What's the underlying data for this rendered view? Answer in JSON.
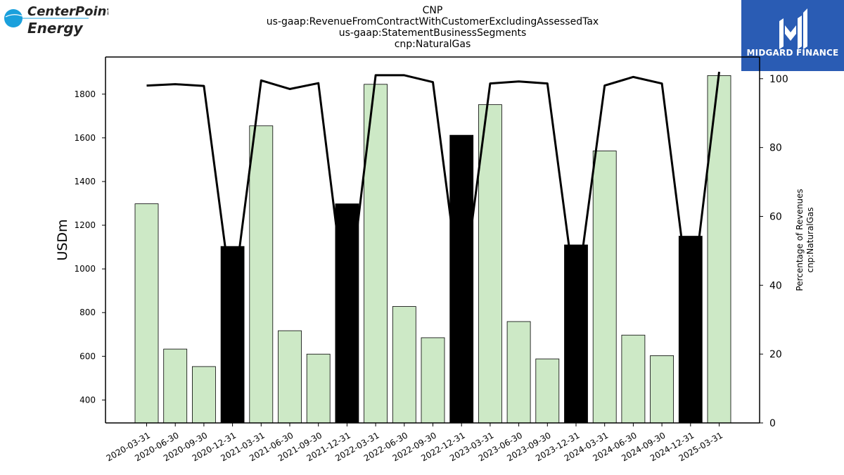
{
  "header": {
    "title_lines": [
      "CNP",
      "us-gaap:RevenueFromContractWithCustomerExcludingAssessedTax",
      "us-gaap:StatementBusinessSegments",
      "cnp:NaturalGas"
    ]
  },
  "logos": {
    "left": {
      "line1": "CenterPoint.",
      "line2": "Energy",
      "icon": "centerpoint-globe-icon",
      "color": "#1aa0dc"
    },
    "right": {
      "text": "MIDGARD FINANCE",
      "icon": "midgard-m-icon",
      "bg": "#2a5cb4"
    }
  },
  "chart_data": {
    "type": "bar",
    "categories": [
      "2020-03-31",
      "2020-06-30",
      "2020-09-30",
      "2020-12-31",
      "2021-03-31",
      "2021-06-30",
      "2021-09-30",
      "2021-12-31",
      "2022-03-31",
      "2022-06-30",
      "2022-09-30",
      "2022-12-31",
      "2023-03-31",
      "2023-06-30",
      "2023-09-30",
      "2023-12-31",
      "2024-03-31",
      "2024-06-30",
      "2024-09-30",
      "2024-12-31",
      "2025-03-31"
    ],
    "values": [
      1298,
      633,
      553,
      1103,
      1655,
      717,
      610,
      1298,
      1845,
      828,
      685,
      1612,
      1752,
      759,
      588,
      1110,
      1540,
      697,
      603,
      1150,
      1885
    ],
    "bar_colors": [
      "#cde9c6",
      "#cde9c6",
      "#cde9c6",
      "#000000",
      "#cde9c6",
      "#cde9c6",
      "#cde9c6",
      "#000000",
      "#cde9c6",
      "#cde9c6",
      "#cde9c6",
      "#000000",
      "#cde9c6",
      "#cde9c6",
      "#cde9c6",
      "#000000",
      "#cde9c6",
      "#cde9c6",
      "#cde9c6",
      "#000000",
      "#cde9c6"
    ],
    "series": [
      {
        "type": "line",
        "axis": "right",
        "color": "#000000",
        "values": [
          98.0,
          98.4,
          97.9,
          35.0,
          99.5,
          97.0,
          98.7,
          32.0,
          101.0,
          101.0,
          99.0,
          35.0,
          98.6,
          99.2,
          98.6,
          36.0,
          98.0,
          100.5,
          98.6,
          33.0,
          102.0
        ]
      }
    ],
    "ylabel": "USDm",
    "y2label_lines": [
      "Percentage of Revenues",
      "cnp:NaturalGas"
    ],
    "ylim": [
      295,
      1970
    ],
    "yticks": [
      400,
      600,
      800,
      1000,
      1200,
      1400,
      1600,
      1800
    ],
    "y2lim": [
      0,
      106.3
    ],
    "y2ticks": [
      0,
      20,
      40,
      60,
      80,
      100
    ],
    "grid": false,
    "legend": "none"
  }
}
